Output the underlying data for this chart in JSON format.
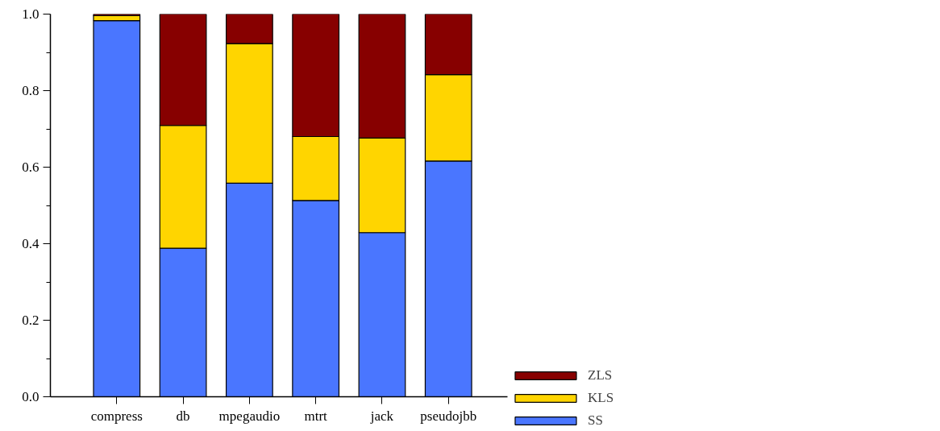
{
  "chart_data": {
    "type": "bar",
    "stacked": true,
    "categories": [
      "compress",
      "db",
      "mpegaudio",
      "mtrt",
      "jack",
      "pseudojbb"
    ],
    "series": [
      {
        "name": "SS",
        "color": "#4a76ff",
        "values": [
          0.983,
          0.388,
          0.558,
          0.513,
          0.429,
          0.616
        ]
      },
      {
        "name": "KLS",
        "color": "#ffd500",
        "values": [
          0.013,
          0.321,
          0.365,
          0.167,
          0.247,
          0.226
        ]
      },
      {
        "name": "ZLS",
        "color": "#870000",
        "values": [
          0.004,
          0.291,
          0.077,
          0.32,
          0.324,
          0.158
        ]
      }
    ],
    "ylim": [
      0,
      1.0
    ],
    "yticks": [
      {
        "value": 0,
        "label": "0.0"
      },
      {
        "value": 0.1,
        "label": null
      },
      {
        "value": 0.2,
        "label": "0.2"
      },
      {
        "value": 0.3,
        "label": null
      },
      {
        "value": 0.4,
        "label": "0.4"
      },
      {
        "value": 0.5,
        "label": null
      },
      {
        "value": 0.6,
        "label": "0.6"
      },
      {
        "value": 0.7,
        "label": null
      },
      {
        "value": 0.8,
        "label": "0.8"
      },
      {
        "value": 0.9,
        "label": null
      },
      {
        "value": 1.0,
        "label": "1.0"
      }
    ],
    "grid": false,
    "legend": "right"
  }
}
